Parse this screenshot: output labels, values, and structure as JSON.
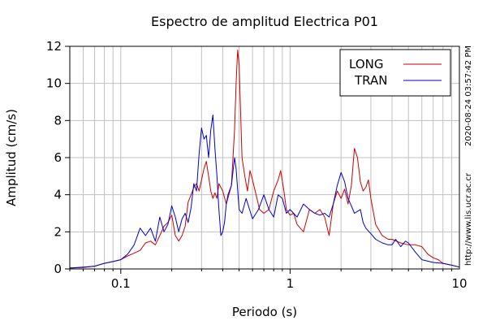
{
  "chart_data": {
    "type": "line",
    "title": "Espectro de amplitud Electrica P01",
    "xlabel": "Periodo (s)",
    "ylabel": "Amplitud (cm/s)",
    "x_scale": "log",
    "xlim": [
      0.05,
      10
    ],
    "ylim": [
      0,
      12
    ],
    "x_ticks": [
      0.1,
      1,
      10
    ],
    "x_tick_labels": [
      "0.1",
      "1",
      "10"
    ],
    "y_ticks": [
      0,
      2,
      4,
      6,
      8,
      10,
      12
    ],
    "y_tick_labels": [
      "0",
      "2",
      "4",
      "6",
      "8",
      "10",
      "12"
    ],
    "grid": true,
    "legend_position": "top-right",
    "side_labels": [
      "2020-08-24 03:57:42 PM",
      "http://www.lis.ucr.ac.cr"
    ],
    "series": [
      {
        "name": "LONG",
        "color": "#cc0000",
        "points": [
          [
            0.05,
            0.05
          ],
          [
            0.06,
            0.08
          ],
          [
            0.07,
            0.15
          ],
          [
            0.08,
            0.3
          ],
          [
            0.09,
            0.4
          ],
          [
            0.1,
            0.5
          ],
          [
            0.11,
            0.7
          ],
          [
            0.12,
            0.85
          ],
          [
            0.13,
            1.0
          ],
          [
            0.14,
            1.4
          ],
          [
            0.15,
            1.5
          ],
          [
            0.16,
            1.3
          ],
          [
            0.17,
            1.8
          ],
          [
            0.18,
            2.3
          ],
          [
            0.19,
            2.5
          ],
          [
            0.2,
            2.9
          ],
          [
            0.21,
            1.8
          ],
          [
            0.22,
            1.5
          ],
          [
            0.23,
            1.8
          ],
          [
            0.24,
            2.3
          ],
          [
            0.25,
            3.6
          ],
          [
            0.26,
            4.0
          ],
          [
            0.27,
            4.4
          ],
          [
            0.28,
            4.6
          ],
          [
            0.29,
            4.2
          ],
          [
            0.3,
            4.8
          ],
          [
            0.31,
            5.4
          ],
          [
            0.32,
            5.8
          ],
          [
            0.33,
            5.0
          ],
          [
            0.34,
            4.2
          ],
          [
            0.35,
            3.8
          ],
          [
            0.36,
            4.1
          ],
          [
            0.37,
            3.8
          ],
          [
            0.38,
            4.6
          ],
          [
            0.4,
            4.2
          ],
          [
            0.42,
            3.5
          ],
          [
            0.45,
            4.5
          ],
          [
            0.47,
            7.5
          ],
          [
            0.48,
            10.0
          ],
          [
            0.49,
            11.8
          ],
          [
            0.5,
            11.0
          ],
          [
            0.51,
            8.5
          ],
          [
            0.52,
            6.0
          ],
          [
            0.54,
            5.0
          ],
          [
            0.56,
            4.2
          ],
          [
            0.58,
            5.3
          ],
          [
            0.6,
            4.8
          ],
          [
            0.63,
            4.0
          ],
          [
            0.66,
            3.2
          ],
          [
            0.7,
            3.0
          ],
          [
            0.75,
            3.2
          ],
          [
            0.8,
            4.2
          ],
          [
            0.85,
            4.8
          ],
          [
            0.88,
            5.3
          ],
          [
            0.92,
            4.2
          ],
          [
            0.95,
            3.2
          ],
          [
            1.0,
            2.9
          ],
          [
            1.05,
            3.0
          ],
          [
            1.1,
            2.4
          ],
          [
            1.2,
            2.0
          ],
          [
            1.3,
            3.2
          ],
          [
            1.4,
            3.0
          ],
          [
            1.5,
            3.2
          ],
          [
            1.6,
            2.8
          ],
          [
            1.7,
            1.8
          ],
          [
            1.8,
            3.5
          ],
          [
            1.9,
            4.2
          ],
          [
            2.0,
            3.8
          ],
          [
            2.1,
            4.3
          ],
          [
            2.2,
            3.5
          ],
          [
            2.3,
            4.5
          ],
          [
            2.4,
            6.5
          ],
          [
            2.5,
            6.0
          ],
          [
            2.6,
            4.7
          ],
          [
            2.7,
            4.2
          ],
          [
            2.8,
            4.4
          ],
          [
            2.9,
            4.8
          ],
          [
            3.0,
            3.8
          ],
          [
            3.2,
            2.4
          ],
          [
            3.5,
            1.8
          ],
          [
            3.8,
            1.6
          ],
          [
            4.0,
            1.6
          ],
          [
            4.5,
            1.4
          ],
          [
            5.0,
            1.3
          ],
          [
            5.5,
            1.3
          ],
          [
            6.0,
            1.2
          ],
          [
            6.5,
            0.8
          ],
          [
            7.0,
            0.6
          ],
          [
            7.5,
            0.5
          ],
          [
            8.0,
            0.3
          ],
          [
            9.0,
            0.2
          ],
          [
            10.0,
            0.1
          ]
        ]
      },
      {
        "name": "TRAN",
        "color": "#0000cc",
        "points": [
          [
            0.05,
            0.05
          ],
          [
            0.06,
            0.1
          ],
          [
            0.07,
            0.15
          ],
          [
            0.08,
            0.3
          ],
          [
            0.09,
            0.4
          ],
          [
            0.1,
            0.5
          ],
          [
            0.11,
            0.8
          ],
          [
            0.12,
            1.3
          ],
          [
            0.13,
            2.2
          ],
          [
            0.14,
            1.8
          ],
          [
            0.15,
            2.2
          ],
          [
            0.16,
            1.5
          ],
          [
            0.17,
            2.8
          ],
          [
            0.18,
            2.0
          ],
          [
            0.19,
            2.4
          ],
          [
            0.2,
            3.4
          ],
          [
            0.21,
            2.8
          ],
          [
            0.22,
            2.0
          ],
          [
            0.23,
            2.7
          ],
          [
            0.24,
            3.0
          ],
          [
            0.25,
            2.5
          ],
          [
            0.26,
            3.3
          ],
          [
            0.27,
            4.6
          ],
          [
            0.28,
            4.2
          ],
          [
            0.29,
            6.2
          ],
          [
            0.3,
            7.6
          ],
          [
            0.31,
            7.0
          ],
          [
            0.32,
            7.2
          ],
          [
            0.33,
            6.0
          ],
          [
            0.34,
            7.5
          ],
          [
            0.35,
            8.3
          ],
          [
            0.36,
            6.5
          ],
          [
            0.37,
            5.0
          ],
          [
            0.38,
            3.2
          ],
          [
            0.39,
            1.8
          ],
          [
            0.4,
            2.0
          ],
          [
            0.41,
            2.5
          ],
          [
            0.42,
            3.5
          ],
          [
            0.43,
            4.0
          ],
          [
            0.45,
            4.5
          ],
          [
            0.47,
            6.0
          ],
          [
            0.48,
            5.4
          ],
          [
            0.5,
            3.2
          ],
          [
            0.52,
            3.0
          ],
          [
            0.55,
            3.8
          ],
          [
            0.6,
            2.7
          ],
          [
            0.65,
            3.2
          ],
          [
            0.7,
            4.0
          ],
          [
            0.75,
            3.2
          ],
          [
            0.8,
            2.8
          ],
          [
            0.85,
            4.0
          ],
          [
            0.9,
            3.8
          ],
          [
            0.95,
            3.0
          ],
          [
            1.0,
            3.2
          ],
          [
            1.1,
            2.8
          ],
          [
            1.2,
            3.5
          ],
          [
            1.3,
            3.2
          ],
          [
            1.4,
            3.0
          ],
          [
            1.5,
            2.9
          ],
          [
            1.6,
            3.0
          ],
          [
            1.7,
            2.8
          ],
          [
            1.8,
            3.5
          ],
          [
            1.9,
            4.5
          ],
          [
            2.0,
            5.2
          ],
          [
            2.1,
            4.7
          ],
          [
            2.2,
            3.8
          ],
          [
            2.3,
            3.4
          ],
          [
            2.4,
            3.0
          ],
          [
            2.5,
            3.1
          ],
          [
            2.6,
            3.2
          ],
          [
            2.7,
            2.5
          ],
          [
            2.8,
            2.2
          ],
          [
            3.0,
            1.9
          ],
          [
            3.2,
            1.6
          ],
          [
            3.5,
            1.4
          ],
          [
            3.8,
            1.3
          ],
          [
            4.0,
            1.3
          ],
          [
            4.2,
            1.6
          ],
          [
            4.5,
            1.2
          ],
          [
            4.8,
            1.5
          ],
          [
            5.0,
            1.4
          ],
          [
            5.5,
            0.9
          ],
          [
            6.0,
            0.5
          ],
          [
            7.0,
            0.35
          ],
          [
            8.0,
            0.3
          ],
          [
            9.0,
            0.2
          ],
          [
            10.0,
            0.1
          ]
        ]
      }
    ]
  }
}
